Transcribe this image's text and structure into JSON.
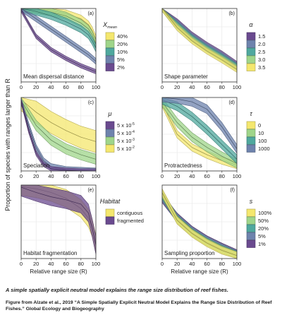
{
  "figure": {
    "ylabel": "Proportion of species with ranges larger than R",
    "xlabel": "Relative range size (R)"
  },
  "caption": {
    "headline": "A simple spatially explicit neutral model explains the range size distribution of reef fishes.",
    "source": "Figure from Alzate et al., 2019 “A Simple Spatially Explicit Neutral Model Explains the Range Size Distribution of Reef Fishes.” Global Ecology and Biogeography"
  },
  "colors": {
    "yellow": "#f4e76e",
    "lightgreen": "#9fd58a",
    "teal": "#4fa89e",
    "slate": "#6e83ad",
    "purple": "#6a4a8f"
  },
  "chart_data": [
    {
      "type": "area",
      "panel": "(a)",
      "title": "Mean dispersal distance",
      "xlim": [
        0,
        100
      ],
      "ylim": [
        0,
        1
      ],
      "x_ticks": [
        0,
        20,
        40,
        60,
        80,
        100
      ],
      "legend": {
        "title": "X",
        "title_sub": "mean",
        "placement": "right",
        "entries": [
          "40%",
          "20%",
          "10%",
          "5%",
          "2%"
        ]
      },
      "series": [
        {
          "name": "40%",
          "color": "#f4e76e",
          "x": [
            0,
            20,
            40,
            60,
            80,
            90,
            95,
            100
          ],
          "y": [
            1,
            0.99,
            0.97,
            0.93,
            0.86,
            0.78,
            0.7,
            0.58
          ],
          "band": 0.05
        },
        {
          "name": "20%",
          "color": "#9fd58a",
          "x": [
            0,
            20,
            40,
            60,
            80,
            90,
            95,
            100
          ],
          "y": [
            1,
            0.98,
            0.95,
            0.9,
            0.8,
            0.72,
            0.64,
            0.52
          ],
          "band": 0.05
        },
        {
          "name": "10%",
          "color": "#4fa89e",
          "x": [
            0,
            20,
            40,
            60,
            80,
            90,
            95,
            100
          ],
          "y": [
            1,
            0.96,
            0.9,
            0.82,
            0.72,
            0.64,
            0.56,
            0.46
          ],
          "band": 0.05
        },
        {
          "name": "5%",
          "color": "#6e83ad",
          "x": [
            0,
            20,
            40,
            60,
            80,
            90,
            100
          ],
          "y": [
            1,
            0.86,
            0.72,
            0.58,
            0.44,
            0.37,
            0.28
          ],
          "band": 0.04
        },
        {
          "name": "2%",
          "color": "#6a4a8f",
          "x": [
            0,
            20,
            40,
            60,
            80,
            100
          ],
          "y": [
            0.98,
            0.62,
            0.44,
            0.32,
            0.22,
            0.14
          ],
          "band": 0.03
        }
      ]
    },
    {
      "type": "area",
      "panel": "(b)",
      "title": "Shape parameter",
      "xlim": [
        0,
        100
      ],
      "ylim": [
        0,
        1
      ],
      "x_ticks": [
        0,
        20,
        40,
        60,
        80,
        100
      ],
      "legend": {
        "title": "α",
        "title_sub": "",
        "placement": "right",
        "entries": [
          "1.5",
          "2.0",
          "2.5",
          "3.0",
          "3.5"
        ]
      },
      "series": [
        {
          "name": "1.5",
          "color": "#6a4a8f",
          "x": [
            0,
            20,
            40,
            60,
            80,
            100
          ],
          "y": [
            1,
            0.82,
            0.64,
            0.5,
            0.38,
            0.24
          ],
          "band": 0.04
        },
        {
          "name": "2.0",
          "color": "#6e83ad",
          "x": [
            0,
            20,
            40,
            60,
            80,
            100
          ],
          "y": [
            1,
            0.8,
            0.62,
            0.48,
            0.36,
            0.22
          ],
          "band": 0.04
        },
        {
          "name": "2.5",
          "color": "#4fa89e",
          "x": [
            0,
            20,
            40,
            60,
            80,
            100
          ],
          "y": [
            1,
            0.78,
            0.6,
            0.46,
            0.34,
            0.21
          ],
          "band": 0.04
        },
        {
          "name": "3.0",
          "color": "#9fd58a",
          "x": [
            0,
            20,
            40,
            60,
            80,
            100
          ],
          "y": [
            1,
            0.76,
            0.58,
            0.44,
            0.32,
            0.19
          ],
          "band": 0.04
        },
        {
          "name": "3.5",
          "color": "#f4e76e",
          "x": [
            0,
            20,
            40,
            60,
            80,
            100
          ],
          "y": [
            1,
            0.74,
            0.56,
            0.42,
            0.3,
            0.17
          ],
          "band": 0.04
        }
      ]
    },
    {
      "type": "area",
      "panel": "(c)",
      "title": "Speciation",
      "xlim": [
        0,
        100
      ],
      "ylim": [
        0,
        1
      ],
      "x_ticks": [
        0,
        20,
        40,
        60,
        80,
        100
      ],
      "legend": {
        "title": "μ",
        "title_sub": "",
        "placement": "right",
        "entries": [
          "5 x 10",
          "5 x 10",
          "5 x 10",
          "5 x 10"
        ],
        "entries_exp": [
          "-5",
          "-4",
          "-3",
          "-2"
        ]
      },
      "series": [
        {
          "name": "5 x 10^-2",
          "color": "#f4e76e",
          "x": [
            0,
            20,
            40,
            60,
            80,
            100
          ],
          "y": [
            0.97,
            0.8,
            0.66,
            0.55,
            0.46,
            0.4
          ],
          "band": 0.15
        },
        {
          "name": "5 x 10^-3",
          "color": "#9fd58a",
          "x": [
            0,
            20,
            40,
            60,
            80,
            100
          ],
          "y": [
            0.96,
            0.62,
            0.42,
            0.3,
            0.22,
            0.16
          ],
          "band": 0.07
        },
        {
          "name": "5 x 10^-4",
          "color": "#6e83ad",
          "x": [
            0,
            10,
            20,
            30,
            40,
            60,
            80,
            100
          ],
          "y": [
            0.95,
            0.62,
            0.32,
            0.14,
            0.06,
            0.02,
            0.01,
            0.0
          ],
          "band": 0.04
        },
        {
          "name": "5 x 10^-5",
          "color": "#6a4a8f",
          "x": [
            0,
            10,
            20,
            30,
            40,
            60,
            80,
            100
          ],
          "y": [
            0.95,
            0.55,
            0.24,
            0.09,
            0.03,
            0.01,
            0.0,
            0.0
          ],
          "band": 0.03
        }
      ]
    },
    {
      "type": "area",
      "panel": "(d)",
      "title": "Protractedness",
      "xlim": [
        0,
        100
      ],
      "ylim": [
        0,
        1
      ],
      "x_ticks": [
        0,
        20,
        40,
        60,
        80,
        100
      ],
      "legend": {
        "title": "τ",
        "title_sub": "",
        "placement": "right",
        "entries": [
          "0",
          "10",
          "100",
          "1000"
        ]
      },
      "series": [
        {
          "name": "0",
          "color": "#f4e76e",
          "x": [
            0,
            20,
            40,
            60,
            80,
            100
          ],
          "y": [
            0.92,
            0.5,
            0.32,
            0.22,
            0.14,
            0.08
          ],
          "band": 0.05
        },
        {
          "name": "10",
          "color": "#9fd58a",
          "x": [
            0,
            20,
            40,
            60,
            80,
            100
          ],
          "y": [
            0.94,
            0.66,
            0.46,
            0.32,
            0.2,
            0.1
          ],
          "band": 0.06
        },
        {
          "name": "100",
          "color": "#4fa89e",
          "x": [
            0,
            20,
            40,
            60,
            80,
            100
          ],
          "y": [
            0.97,
            0.88,
            0.74,
            0.56,
            0.36,
            0.16
          ],
          "band": 0.06
        },
        {
          "name": "1000",
          "color": "#6e83ad",
          "x": [
            0,
            20,
            40,
            60,
            80,
            100
          ],
          "y": [
            1,
            0.98,
            0.94,
            0.84,
            0.6,
            0.3
          ],
          "band": 0.06
        }
      ]
    },
    {
      "type": "area",
      "panel": "(e)",
      "title": "Habitat fragmentation",
      "xlim": [
        0,
        100
      ],
      "ylim": [
        0,
        1
      ],
      "x_ticks": [
        0,
        20,
        40,
        60,
        80,
        100
      ],
      "legend": {
        "title": "Habitat",
        "title_sub": "",
        "placement": "right",
        "entries": [
          "contiguous",
          "fragmented"
        ]
      },
      "series": [
        {
          "name": "contiguous",
          "color": "#f4e76e",
          "x": [
            0,
            20,
            40,
            60,
            80,
            90,
            95,
            100
          ],
          "y": [
            0.98,
            0.95,
            0.9,
            0.82,
            0.68,
            0.55,
            0.42,
            0.2
          ],
          "band": 0.12
        },
        {
          "name": "fragmented",
          "color": "#6a4a8f",
          "x": [
            0,
            20,
            40,
            60,
            80,
            90,
            95,
            100
          ],
          "y": [
            0.97,
            0.9,
            0.84,
            0.8,
            0.74,
            0.62,
            0.42,
            0.18
          ],
          "band": 0.12
        }
      ]
    },
    {
      "type": "area",
      "panel": "(f)",
      "title": "Sampling proportion",
      "xlim": [
        0,
        100
      ],
      "ylim": [
        0,
        1
      ],
      "x_ticks": [
        0,
        20,
        40,
        60,
        80,
        100
      ],
      "legend": {
        "title": "s",
        "title_sub": "",
        "placement": "right",
        "entries": [
          "100%",
          "50%",
          "20%",
          "5%",
          "1%"
        ]
      },
      "series": [
        {
          "name": "1%",
          "color": "#6a4a8f",
          "x": [
            0,
            20,
            40,
            60,
            80,
            100
          ],
          "y": [
            0.82,
            0.56,
            0.38,
            0.25,
            0.15,
            0.06
          ],
          "band": 0.06
        },
        {
          "name": "5%",
          "color": "#6e83ad",
          "x": [
            0,
            20,
            40,
            60,
            80,
            100
          ],
          "y": [
            0.84,
            0.55,
            0.37,
            0.24,
            0.14,
            0.05
          ],
          "band": 0.06
        },
        {
          "name": "20%",
          "color": "#4fa89e",
          "x": [
            0,
            20,
            40,
            60,
            80,
            100
          ],
          "y": [
            0.86,
            0.54,
            0.36,
            0.23,
            0.13,
            0.05
          ],
          "band": 0.05
        },
        {
          "name": "50%",
          "color": "#9fd58a",
          "x": [
            0,
            20,
            40,
            60,
            80,
            100
          ],
          "y": [
            0.88,
            0.53,
            0.35,
            0.22,
            0.12,
            0.04
          ],
          "band": 0.05
        },
        {
          "name": "100%",
          "color": "#f4e76e",
          "x": [
            0,
            20,
            40,
            60,
            80,
            100
          ],
          "y": [
            0.9,
            0.52,
            0.34,
            0.21,
            0.11,
            0.04
          ],
          "band": 0.05
        }
      ]
    }
  ]
}
